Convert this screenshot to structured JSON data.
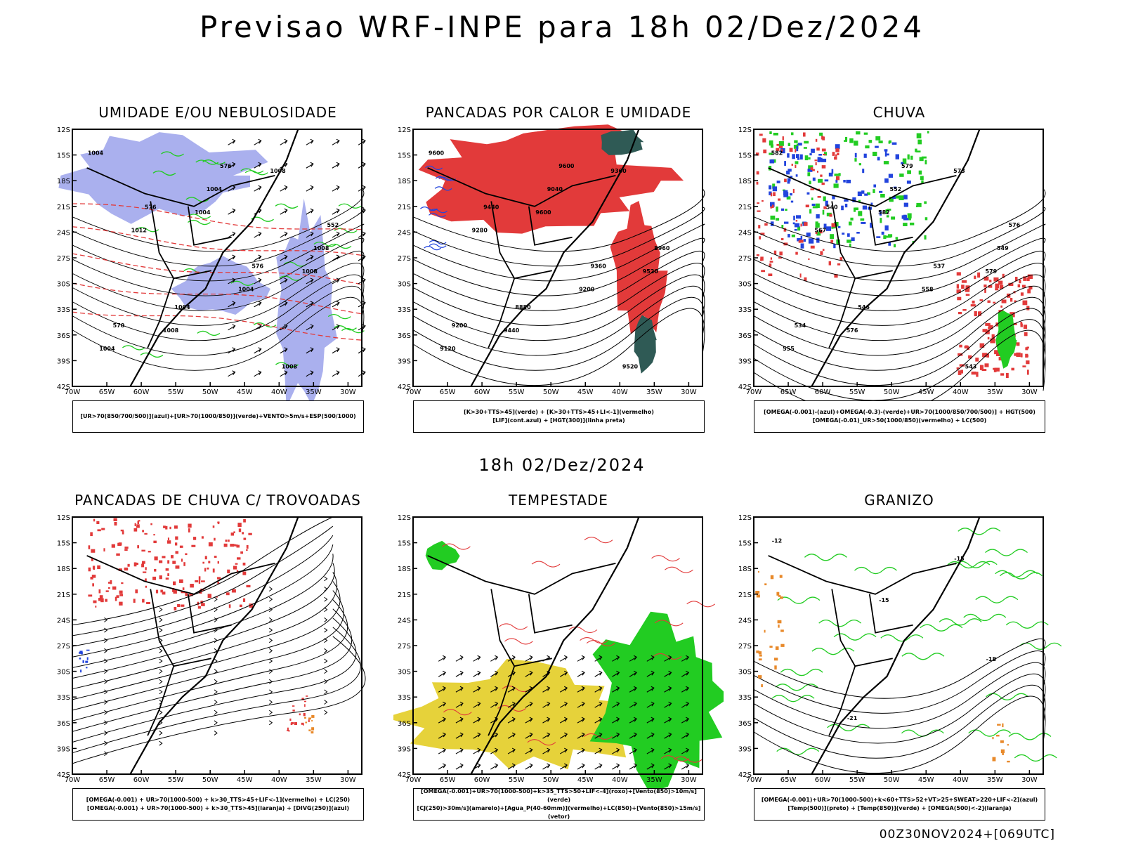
{
  "header": {
    "title": "Previsao WRF-INPE  para 18h 02/Dez/2024",
    "mid_title": "18h 02/Dez/2024",
    "footer": "00Z30NOV2024+[069UTC]"
  },
  "colors": {
    "red": "#e23a3a",
    "green": "#22cc22",
    "blue": "#2244dd",
    "lavender": "#aab0ee",
    "yellow": "#e6d23a",
    "orange": "#e8892a",
    "darkteal": "#2f5a55",
    "black": "#000000"
  },
  "chart_data": [
    {
      "type": "map",
      "title": "UMIDADE E/OU NEBULOSIDADE",
      "lat_ticks": [
        "12S",
        "15S",
        "18S",
        "21S",
        "24S",
        "27S",
        "30S",
        "33S",
        "36S",
        "39S",
        "42S"
      ],
      "lon_ticks": [
        "70W",
        "65W",
        "60W",
        "55W",
        "50W",
        "45W",
        "40W",
        "35W",
        "30W"
      ],
      "contour_labels": [
        "1004",
        "1004",
        "1008",
        "1008",
        "1008",
        "1012",
        "1004",
        "1004",
        "1004",
        "1008",
        "1004",
        "1008",
        "576",
        "576",
        "570",
        "576",
        "552"
      ],
      "legend": [
        "[UR>70(850/700/500)](azul)+[UR>70(1000/850)](verde)+VENTO>5m/s+ESP(500/1000)"
      ]
    },
    {
      "type": "map",
      "title": "PANCADAS POR CALOR E UMIDADE",
      "lat_ticks": [
        "12S",
        "15S",
        "18S",
        "21S",
        "24S",
        "27S",
        "30S",
        "33S",
        "36S",
        "39S",
        "42S"
      ],
      "lon_ticks": [
        "70W",
        "65W",
        "60W",
        "55W",
        "50W",
        "45W",
        "40W",
        "35W",
        "30W"
      ],
      "contour_labels": [
        "9600",
        "9600",
        "9520",
        "9440",
        "9360",
        "9280",
        "9200",
        "9120",
        "9040",
        "8960",
        "8880",
        "9520",
        "9440",
        "9360",
        "9200",
        "9600"
      ],
      "legend": [
        "[K>30+TTS>45](verde) + [K>30+TTS>45+LI<-1](vermelho)",
        "[LIF](cont.azul) + [HGT(300)](linha preta)"
      ]
    },
    {
      "type": "map",
      "title": "CHUVA",
      "lat_ticks": [
        "12S",
        "15S",
        "18S",
        "21S",
        "24S",
        "27S",
        "30S",
        "33S",
        "36S",
        "39S",
        "42S"
      ],
      "lon_ticks": [
        "70W",
        "65W",
        "60W",
        "55W",
        "50W",
        "45W",
        "40W",
        "35W",
        "30W"
      ],
      "contour_labels": [
        "582",
        "582",
        "579",
        "576",
        "573",
        "567",
        "558",
        "555",
        "552",
        "549",
        "546",
        "543",
        "540",
        "537",
        "534",
        "579",
        "576"
      ],
      "legend": [
        "[OMEGA(-0.001)-(azul)+OMEGA(-0.3)-(verde)+UR>70(1000/850/700/500)] + HGT(500)",
        "[OMEGA(-0.01)_UR>50(1000/850)(vermelho) + LC(500)"
      ]
    },
    {
      "type": "map",
      "title": "PANCADAS DE CHUVA C/ TROVOADAS",
      "lat_ticks": [
        "12S",
        "15S",
        "18S",
        "21S",
        "24S",
        "27S",
        "30S",
        "33S",
        "36S",
        "39S",
        "42S"
      ],
      "lon_ticks": [
        "70W",
        "65W",
        "60W",
        "55W",
        "50W",
        "45W",
        "40W",
        "35W",
        "30W"
      ],
      "contour_labels": [],
      "legend": [
        "[OMEGA(-0.001) + UR>70(1000-500) + k>30_TTS>45+LIF<-1](vermelho) + LC(250)",
        "[OMEGA(-0.001) + UR>70(1000-500) + k>30_TTS>45](laranja) + [DIVG(250)](azul)"
      ]
    },
    {
      "type": "map",
      "title": "TEMPESTADE",
      "lat_ticks": [
        "12S",
        "15S",
        "18S",
        "21S",
        "24S",
        "27S",
        "30S",
        "33S",
        "36S",
        "39S",
        "42S"
      ],
      "lon_ticks": [
        "70W",
        "65W",
        "60W",
        "55W",
        "50W",
        "45W",
        "40W",
        "35W",
        "30W"
      ],
      "contour_labels": [],
      "legend": [
        "[OMEGA(-0.001)+UR>70(1000-500)+k>35_TTS>50+LIF<-4](roxo)+[Vento(850)>10m/s](verde)",
        "[CJ(250)>30m/s](amarelo)+[Agua_P(40-60mm)](vermelho)+LC(850)+[Vento(850)>15m/s](vetor)"
      ]
    },
    {
      "type": "map",
      "title": "GRANIZO",
      "lat_ticks": [
        "12S",
        "15S",
        "18S",
        "21S",
        "24S",
        "27S",
        "30S",
        "33S",
        "36S",
        "39S",
        "42S"
      ],
      "lon_ticks": [
        "70W",
        "65W",
        "60W",
        "55W",
        "50W",
        "45W",
        "40W",
        "35W",
        "30W"
      ],
      "contour_labels": [
        "-12",
        "-15",
        "-18",
        "-21",
        "-15"
      ],
      "legend": [
        "[OMEGA(-0.001)+UR>70(1000-500)+k<60+TTS>52+VT>25+SWEAT>220+LIF<-2](azul)",
        "[Temp(500)](preto) + [Temp(850)](verde) + [OMEGA(500)<-2](laranja)"
      ]
    }
  ]
}
